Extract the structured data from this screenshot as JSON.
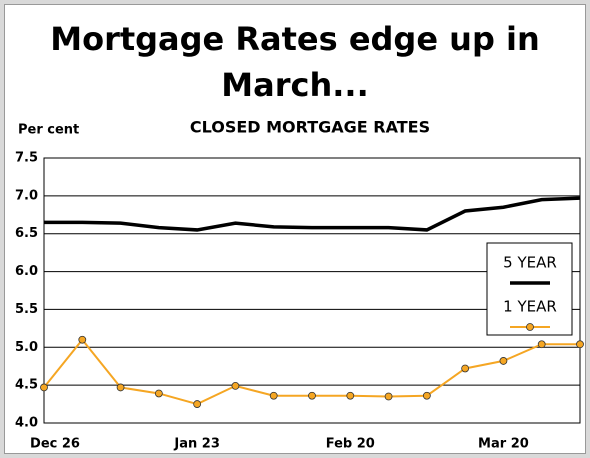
{
  "chart_data": {
    "type": "line",
    "title": "Mortgage Rates edge up in March...",
    "subtitle": "CLOSED MORTGAGE RATES",
    "y_label": "Per cent",
    "categories": [
      "Dec 26",
      null,
      null,
      null,
      "Jan 23",
      null,
      null,
      null,
      "Feb 20",
      null,
      null,
      null,
      "Mar 20",
      null,
      null
    ],
    "series": [
      {
        "name": "5 YEAR",
        "color": "#000000",
        "values": [
          6.65,
          6.65,
          6.64,
          6.58,
          6.55,
          6.64,
          6.59,
          6.58,
          6.58,
          6.58,
          6.55,
          6.8,
          6.85,
          6.95,
          6.97
        ]
      },
      {
        "name": "1 YEAR",
        "color": "#f5a623",
        "values": [
          4.47,
          5.1,
          4.47,
          4.39,
          4.25,
          4.49,
          4.36,
          4.36,
          4.36,
          4.35,
          4.36,
          4.72,
          4.82,
          5.04,
          5.04
        ]
      }
    ],
    "ylim": [
      4.0,
      7.5
    ],
    "yticks": [
      {
        "value": 4,
        "label": "4.0"
      },
      4.5,
      {
        "value": 5,
        "label": "5.0"
      },
      5.5,
      {
        "value": 6,
        "label": "6.0"
      },
      6.5,
      {
        "value": 7,
        "label": "7.0"
      },
      7.5
    ],
    "grid": true
  }
}
